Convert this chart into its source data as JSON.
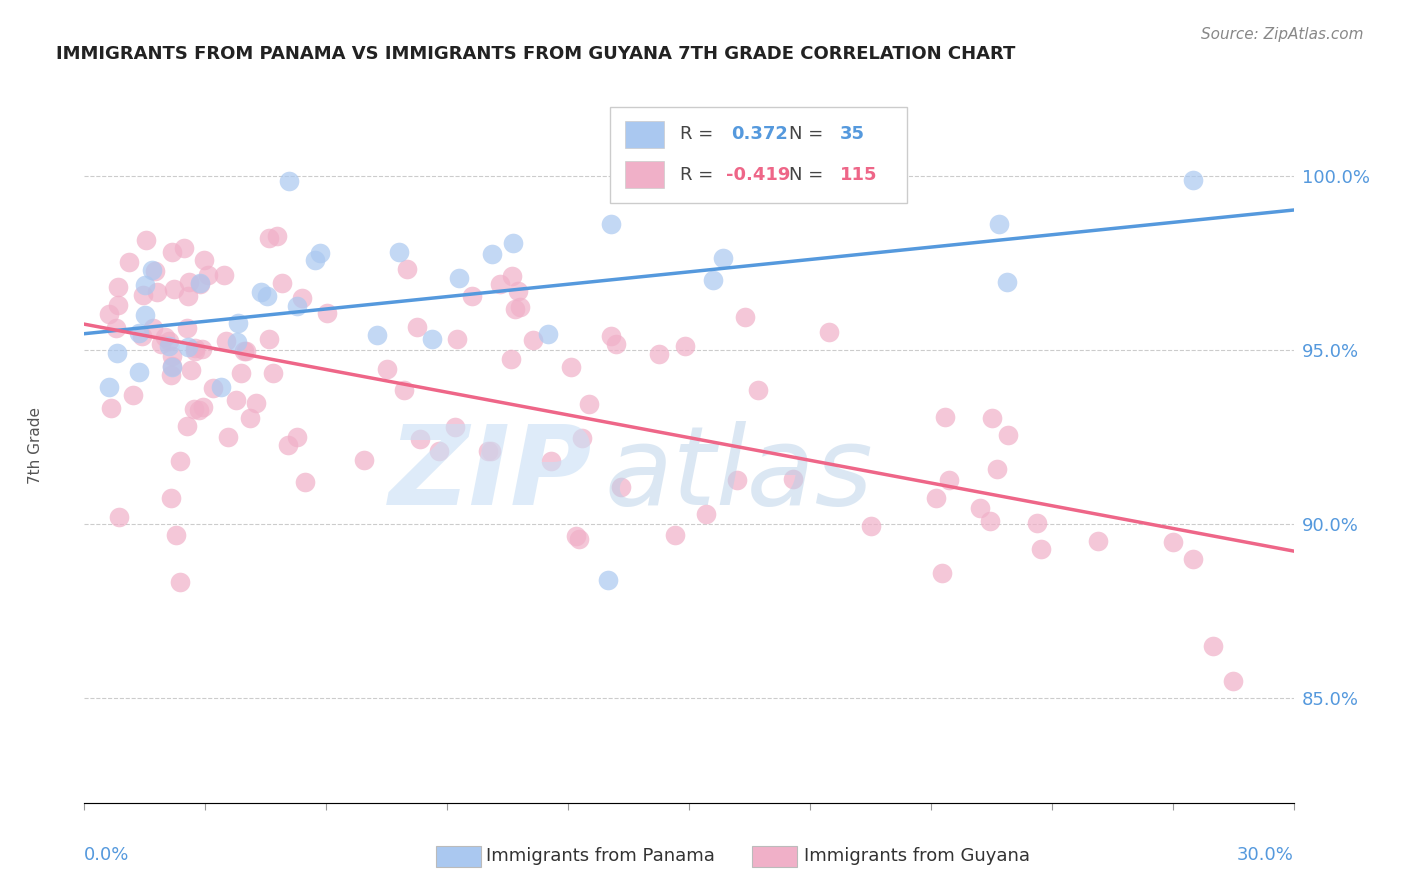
{
  "title": "IMMIGRANTS FROM PANAMA VS IMMIGRANTS FROM GUYANA 7TH GRADE CORRELATION CHART",
  "source": "Source: ZipAtlas.com",
  "ylabel": "7th Grade",
  "ylabel_right_labels": [
    "100.0%",
    "95.0%",
    "90.0%",
    "85.0%"
  ],
  "ylabel_right_values": [
    1.0,
    0.95,
    0.9,
    0.85
  ],
  "xlim": [
    0.0,
    0.3
  ],
  "ylim": [
    0.82,
    1.025
  ],
  "legend_r_panama": "0.372",
  "legend_n_panama": "35",
  "legend_r_guyana": "-0.419",
  "legend_n_guyana": "115",
  "panama_color": "#aac8f0",
  "guyana_color": "#f0b0c8",
  "panama_line_color": "#5599dd",
  "guyana_line_color": "#ee6688",
  "background_color": "#ffffff",
  "watermark_zip_color": "#c8dff5",
  "watermark_atlas_color": "#b8d0e8"
}
